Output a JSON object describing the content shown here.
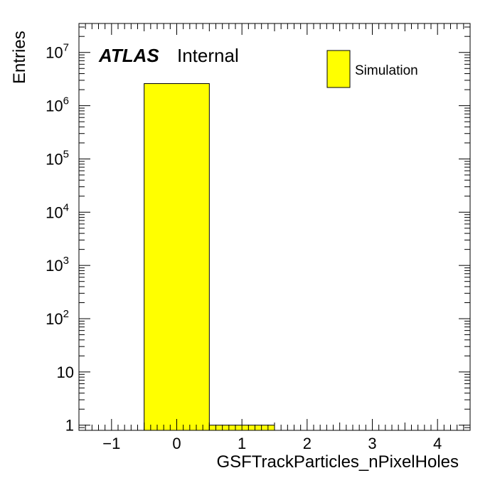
{
  "chart_data": {
    "type": "bar",
    "histogram": true,
    "bin_edges": [
      -1.5,
      -0.5,
      0.5,
      1.5,
      2.5,
      3.5,
      4.5
    ],
    "values": [
      0,
      2600000,
      1,
      0,
      0,
      0
    ],
    "xlabel": "GSFTrackParticles_nPixelHoles",
    "ylabel": "Entries",
    "xlim": [
      -1.5,
      4.5
    ],
    "ylim": [
      0.8,
      35000000
    ],
    "yscale": "log",
    "x_ticks": [
      -1,
      0,
      1,
      2,
      3,
      4
    ],
    "x_tick_labels": [
      "−1",
      "0",
      "1",
      "2",
      "3",
      "4"
    ],
    "y_ticks": [
      {
        "value": 1,
        "base": "1",
        "exp": ""
      },
      {
        "value": 10,
        "base": "10",
        "exp": ""
      },
      {
        "value": 100,
        "base": "10",
        "exp": "2"
      },
      {
        "value": 1000,
        "base": "10",
        "exp": "3"
      },
      {
        "value": 10000,
        "base": "10",
        "exp": "4"
      },
      {
        "value": 100000,
        "base": "10",
        "exp": "5"
      },
      {
        "value": 1000000,
        "base": "10",
        "exp": "6"
      },
      {
        "value": 10000000,
        "base": "10",
        "exp": "7"
      }
    ],
    "fill_color": "#ffff00",
    "edge_color": "#000000",
    "grid": false,
    "legend": {
      "placement": "top-right",
      "entries": [
        "Simulation"
      ]
    },
    "annotation": {
      "experiment": "ATLAS",
      "status": "Internal"
    }
  }
}
